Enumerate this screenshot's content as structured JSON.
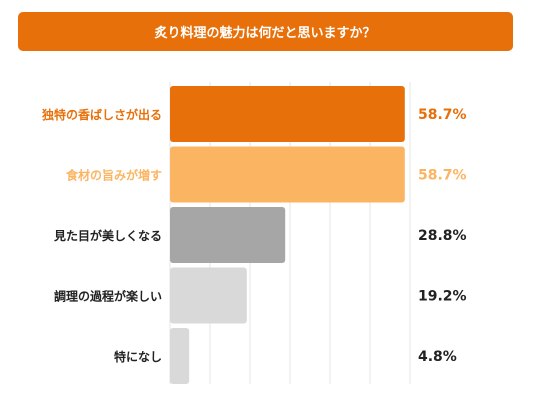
{
  "chart_data": {
    "type": "bar",
    "orientation": "horizontal",
    "title": "炙り料理の魅力は何だと思いますか？",
    "categories": [
      "独特の香ばしさが出る",
      "食材の旨みが増す",
      "見た目が美しくなる",
      "調理の過程が楽しい",
      "特になし"
    ],
    "values": [
      58.7,
      58.7,
      28.8,
      19.2,
      4.8
    ],
    "value_labels": [
      "58.7%",
      "58.7%",
      "28.8%",
      "19.2%",
      "4.8%"
    ],
    "xlim": [
      0,
      60
    ],
    "grid": true,
    "legend": "none",
    "colors": {
      "title_bg": "#E8700A",
      "title_text": "#FFFFFF",
      "bars": [
        "#E8700A",
        "#FBB562",
        "#A6A6A6",
        "#D9D9D9",
        "#D9D9D9"
      ],
      "label_text": [
        "#E8700A",
        "#FBB562",
        "#222222",
        "#222222",
        "#222222"
      ],
      "value_text": [
        "#E8700A",
        "#FBB562",
        "#222222",
        "#222222",
        "#222222"
      ],
      "grid": "#E6E6E6"
    }
  }
}
